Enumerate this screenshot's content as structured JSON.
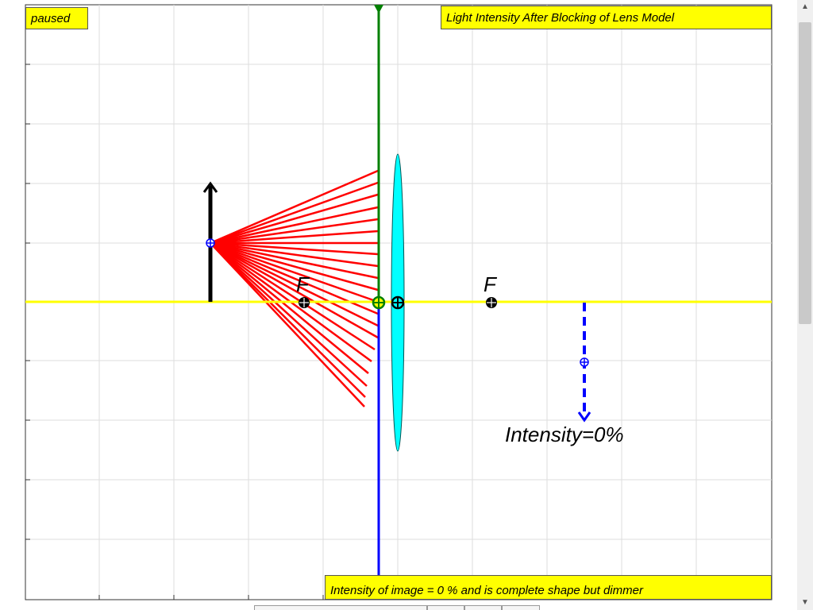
{
  "status_label": "paused",
  "title": "Light Intensity After Blocking of Lens Model",
  "message": "Intensity of image = 0 % and is complete shape but dimmer",
  "focal_left_label": "F",
  "focal_right_label": "F",
  "intensity_label": "Intensity=0%",
  "colors": {
    "label_bg": "#ffff00",
    "principal_axis": "#ffff00",
    "lens_fill": "#00ffff",
    "rays": "#ff0000",
    "blocker": "#008000",
    "image_arrow": "#0000ff",
    "object_arrow": "#000000",
    "grid": "#dddddd"
  },
  "icons": {
    "scroll_up": "scroll-up-arrow-icon",
    "scroll_down": "scroll-down-arrow-icon"
  }
}
